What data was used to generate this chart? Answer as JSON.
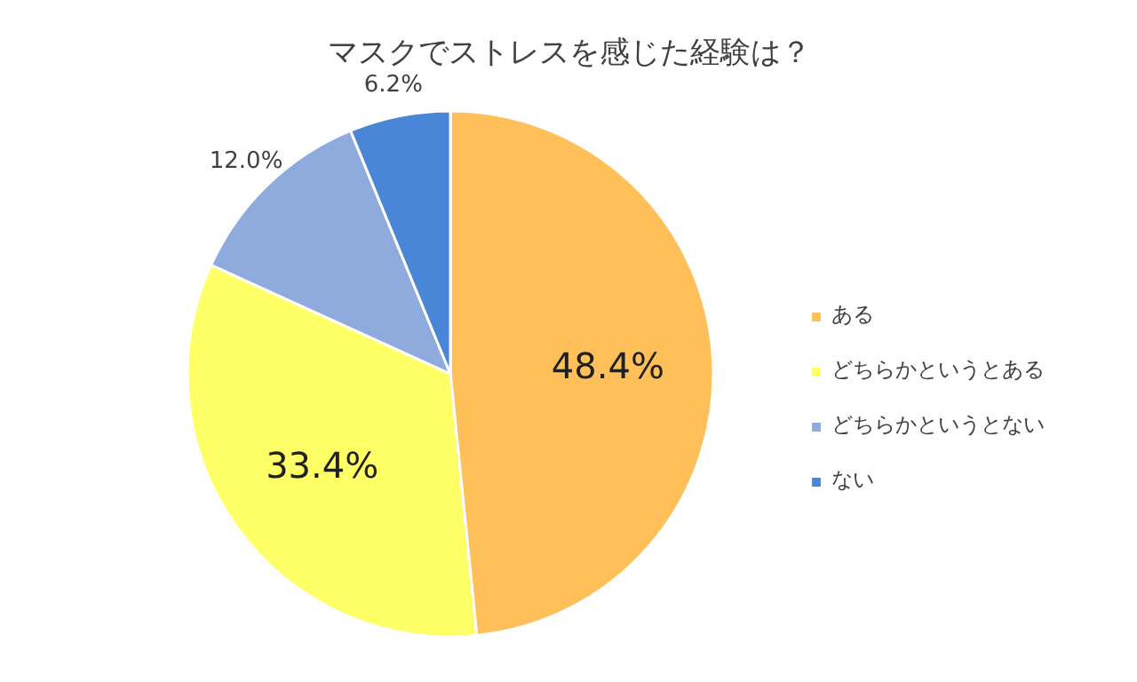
{
  "chart_data": {
    "type": "pie",
    "title": "マスクでストレスを感じた経験は？",
    "categories": [
      "ある",
      "どちらかというとある",
      "どちらかというとない",
      "ない"
    ],
    "values": [
      48.4,
      33.4,
      12.0,
      6.2
    ],
    "colors": [
      "#ffc05a",
      "#ffff66",
      "#8faadc",
      "#4a86d8"
    ],
    "value_labels": [
      "48.4%",
      "33.4%",
      "12.0%",
      "6.2%"
    ],
    "legend": "right"
  }
}
